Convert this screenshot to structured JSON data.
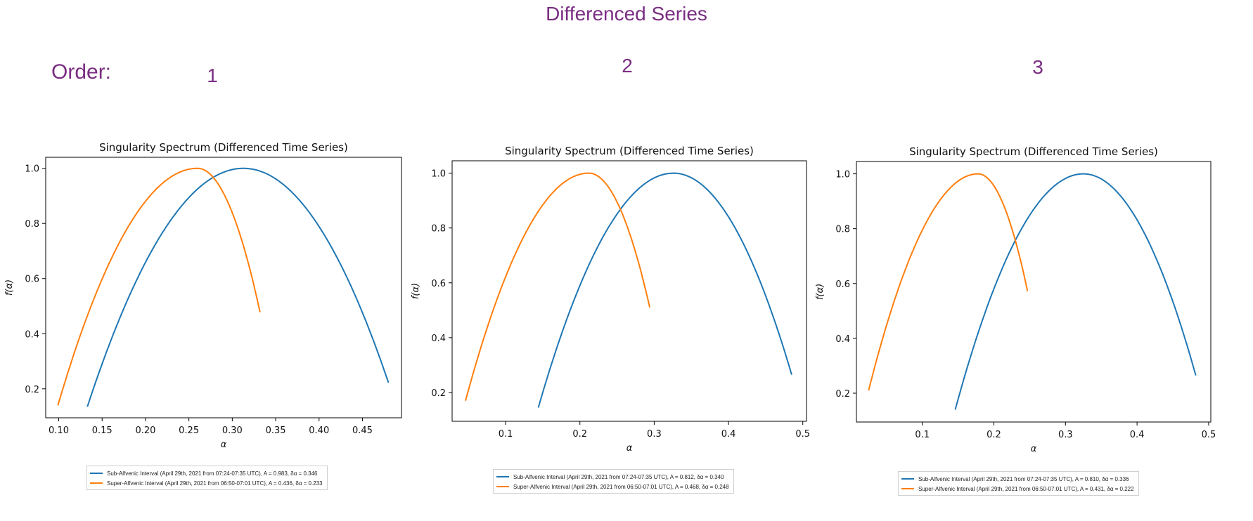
{
  "header": {
    "title": "Differenced Series",
    "order_label": "Order:",
    "orders": [
      "1",
      "2",
      "3"
    ]
  },
  "colors": {
    "heading": "#7a2e82",
    "sub": "#1f77b4",
    "super": "#ff7f0e"
  },
  "chart_data": [
    {
      "type": "line",
      "title": "Singularity Spectrum (Differenced Time Series)",
      "xlabel": "α",
      "ylabel": "f(α)",
      "xlim": [
        0.085,
        0.495
      ],
      "ylim": [
        0.095,
        1.04
      ],
      "xticks": [
        0.1,
        0.15,
        0.2,
        0.25,
        0.3,
        0.35,
        0.4,
        0.45
      ],
      "xtick_labels": [
        "0.10",
        "0.15",
        "0.20",
        "0.25",
        "0.30",
        "0.35",
        "0.40",
        "0.45"
      ],
      "yticks": [
        0.2,
        0.4,
        0.6,
        0.8,
        1.0
      ],
      "ytick_labels": [
        "0.2",
        "0.4",
        "0.6",
        "0.8",
        "1.0"
      ],
      "grid": false,
      "legend_position": "below",
      "series": [
        {
          "name": "Sub-Alfvenic Interval (April 29th, 2021 from 07:24-07:35 UTC), A = 0.983, δα = 0.346",
          "color": "#1f77b4",
          "amin": 0.133,
          "apeak": 0.313,
          "amax": 0.48,
          "fmin": 0.135,
          "fmax": 0.222
        },
        {
          "name": "Super-Alfvenic Interval (April 29th, 2021 from 06:50-07:01 UTC), A = 0.436, δα = 0.233",
          "color": "#ff7f0e",
          "amin": 0.099,
          "apeak": 0.26,
          "amax": 0.332,
          "fmin": 0.14,
          "fmax": 0.478
        }
      ]
    },
    {
      "type": "line",
      "title": "Singularity Spectrum (Differenced Time Series)",
      "xlabel": "α",
      "ylabel": "f(α)",
      "xlim": [
        0.028,
        0.505
      ],
      "ylim": [
        0.095,
        1.045
      ],
      "xticks": [
        0.1,
        0.2,
        0.3,
        0.4,
        0.5
      ],
      "xtick_labels": [
        "0.1",
        "0.2",
        "0.3",
        "0.4",
        "0.5"
      ],
      "yticks": [
        0.2,
        0.4,
        0.6,
        0.8,
        1.0
      ],
      "ytick_labels": [
        "0.2",
        "0.4",
        "0.6",
        "0.8",
        "1.0"
      ],
      "grid": false,
      "legend_position": "below",
      "series": [
        {
          "name": "Sub-Alfvenic Interval (April 29th, 2021 from 07:24-07:35 UTC), A = 0.812, δα = 0.340",
          "color": "#1f77b4",
          "amin": 0.144,
          "apeak": 0.326,
          "amax": 0.485,
          "fmin": 0.145,
          "fmax": 0.265
        },
        {
          "name": "Super-Alfvenic Interval (April 29th, 2021 from 06:50-07:01 UTC), A = 0.468, δα = 0.248",
          "color": "#ff7f0e",
          "amin": 0.046,
          "apeak": 0.212,
          "amax": 0.294,
          "fmin": 0.17,
          "fmax": 0.51
        }
      ]
    },
    {
      "type": "line",
      "title": "Singularity Spectrum (Differenced Time Series)",
      "xlabel": "α",
      "ylabel": "f(α)",
      "xlim": [
        0.008,
        0.503
      ],
      "ylim": [
        0.095,
        1.045
      ],
      "xticks": [
        0.1,
        0.2,
        0.3,
        0.4,
        0.5
      ],
      "xtick_labels": [
        "0.1",
        "0.2",
        "0.3",
        "0.4",
        "0.5"
      ],
      "yticks": [
        0.2,
        0.4,
        0.6,
        0.8,
        1.0
      ],
      "ytick_labels": [
        "0.2",
        "0.4",
        "0.6",
        "0.8",
        "1.0"
      ],
      "grid": false,
      "legend_position": "below",
      "series": [
        {
          "name": "Sub-Alfvenic Interval (April 29th, 2021 from 07:24-07:35 UTC), A = 0.810, δα = 0.336",
          "color": "#1f77b4",
          "amin": 0.146,
          "apeak": 0.325,
          "amax": 0.482,
          "fmin": 0.14,
          "fmax": 0.265
        },
        {
          "name": "Super-Alfvenic Interval (April 29th, 2021 from 06:50-07:01 UTC), A = 0.431, δα = 0.222",
          "color": "#ff7f0e",
          "amin": 0.025,
          "apeak": 0.178,
          "amax": 0.247,
          "fmin": 0.21,
          "fmax": 0.572
        }
      ]
    }
  ]
}
